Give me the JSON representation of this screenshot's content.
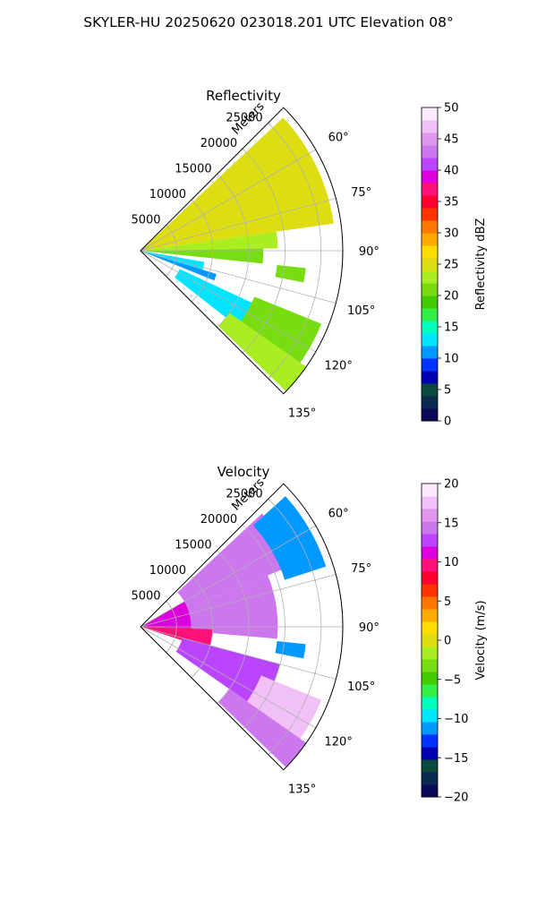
{
  "figure": {
    "title": "SKYLER-HU  20250620  023018.201 UTC Elevation 08°"
  },
  "chart_data": [
    {
      "type": "heatmap",
      "projection": "polar-sector",
      "title": "Reflectivity",
      "range_label": "Meters",
      "range_ticks": [
        "5000",
        "10000",
        "15000",
        "20000",
        "25000"
      ],
      "range_tick_values": [
        5000,
        10000,
        15000,
        20000,
        25000
      ],
      "range_max": 28000,
      "azimuth_ticks": [
        "60°",
        "75°",
        "90°",
        "105°",
        "120°",
        "135°"
      ],
      "azimuth_tick_values": [
        60,
        75,
        90,
        105,
        120,
        135
      ],
      "azimuth_range": [
        45,
        135
      ],
      "grid": true,
      "colorbar": {
        "label": "Reflectivity dBZ",
        "ticks": [
          "0",
          "5",
          "10",
          "15",
          "20",
          "25",
          "30",
          "35",
          "40",
          "45",
          "50"
        ],
        "min": 0,
        "max": 50,
        "colors": [
          "#0a0a5a",
          "#0b2a4e",
          "#0a4a3c",
          "#0000b0",
          "#0033ff",
          "#0099ff",
          "#00e5ff",
          "#00ffbb",
          "#33ee44",
          "#44cc00",
          "#77dd11",
          "#aaee22",
          "#dddd11",
          "#ffdd00",
          "#ffaa00",
          "#ff7700",
          "#ff3300",
          "#ff0033",
          "#ff1177",
          "#dd00dd",
          "#bb44ff",
          "#cc77ee",
          "#e098ee",
          "#f0c0f6",
          "#fce8ff"
        ]
      },
      "echo_regions": [
        {
          "az": [
            47,
            82
          ],
          "r": [
            0,
            27000
          ],
          "value": 24
        },
        {
          "az": [
            82,
            89
          ],
          "r": [
            0,
            19000
          ],
          "value": 22
        },
        {
          "az": [
            89,
            96
          ],
          "r": [
            0,
            17000
          ],
          "value": 21
        },
        {
          "az": [
            100,
            107
          ],
          "r": [
            0,
            9000
          ],
          "value": 12
        },
        {
          "az": [
            107,
            112
          ],
          "r": [
            0,
            11000
          ],
          "value": 11
        },
        {
          "az": [
            115,
            128
          ],
          "r": [
            6000,
            18000
          ],
          "value": 12
        },
        {
          "az": [
            112,
            126
          ],
          "r": [
            17000,
            27000
          ],
          "value": 21
        },
        {
          "az": [
            125,
            134
          ],
          "r": [
            15000,
            28000
          ],
          "value": 23
        },
        {
          "az": [
            96,
            101
          ],
          "r": [
            19000,
            23000
          ],
          "value": 20
        }
      ]
    },
    {
      "type": "heatmap",
      "projection": "polar-sector",
      "title": "Velocity",
      "range_label": "Meters",
      "range_ticks": [
        "5000",
        "10000",
        "15000",
        "20000",
        "25000"
      ],
      "range_tick_values": [
        5000,
        10000,
        15000,
        20000,
        25000
      ],
      "range_max": 28000,
      "azimuth_ticks": [
        "60°",
        "75°",
        "90°",
        "105°",
        "120°",
        "135°"
      ],
      "azimuth_tick_values": [
        60,
        75,
        90,
        105,
        120,
        135
      ],
      "azimuth_range": [
        45,
        135
      ],
      "grid": true,
      "colorbar": {
        "label": "Velocity (m/s)",
        "ticks": [
          "−20",
          "−15",
          "−10",
          "−5",
          "0",
          "5",
          "10",
          "15",
          "20"
        ],
        "min": -20,
        "max": 20,
        "colors": [
          "#0a0a5a",
          "#0b2a4e",
          "#0a4a3c",
          "#0000b0",
          "#0033ff",
          "#0099ff",
          "#00e5ff",
          "#00ffbb",
          "#33ee44",
          "#44cc00",
          "#77dd11",
          "#aaee22",
          "#dddd11",
          "#ffdd00",
          "#ffaa00",
          "#ff7700",
          "#ff3300",
          "#ff0033",
          "#ff1177",
          "#dd00dd",
          "#bb44ff",
          "#cc77ee",
          "#e098ee",
          "#f0c0f6",
          "#fce8ff"
        ]
      },
      "echo_regions": [
        {
          "az": [
            60,
            92
          ],
          "r": [
            0,
            8000
          ],
          "value": 11
        },
        {
          "az": [
            47,
            68
          ],
          "r": [
            7000,
            23000
          ],
          "value": 14
        },
        {
          "az": [
            68,
            95
          ],
          "r": [
            7000,
            19000
          ],
          "value": 14
        },
        {
          "az": [
            48,
            72
          ],
          "r": [
            21000,
            27000
          ],
          "value": -11
        },
        {
          "az": [
            92,
            108
          ],
          "r": [
            0,
            10000
          ],
          "value": 10
        },
        {
          "az": [
            105,
            125
          ],
          "r": [
            6000,
            20000
          ],
          "value": 12
        },
        {
          "az": [
            112,
            128
          ],
          "r": [
            18000,
            27000
          ],
          "value": 17
        },
        {
          "az": [
            125,
            134
          ],
          "r": [
            15000,
            28000
          ],
          "value": 14
        },
        {
          "az": [
            96,
            101
          ],
          "r": [
            19000,
            23000
          ],
          "value": -11
        }
      ]
    }
  ]
}
